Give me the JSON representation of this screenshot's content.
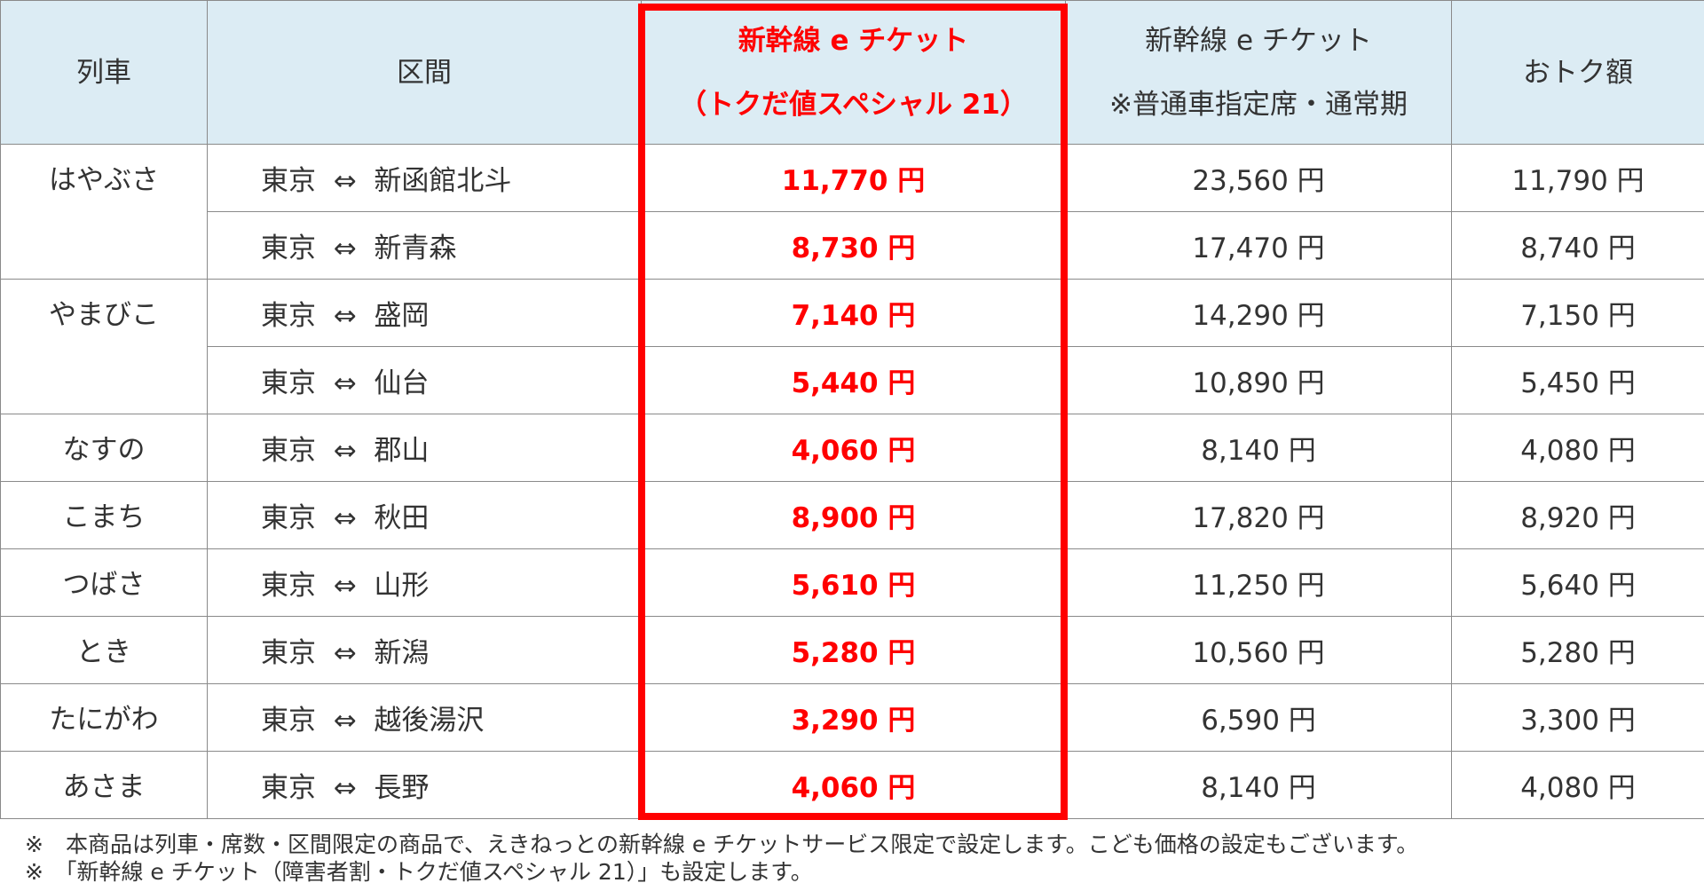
{
  "table": {
    "headers": [
      "列車",
      "区間",
      [
        "新幹線 e チケット",
        "（トクだ値スペシャル 21）"
      ],
      [
        "新幹線 e チケット",
        "※普通車指定席・通常期"
      ],
      "おトク額"
    ],
    "arrow": "⇔",
    "groups": [
      {
        "train": "はやぶさ",
        "routes": [
          {
            "from": "東京",
            "to": "新函館北斗",
            "price": "11,770 円",
            "normal": "23,560 円",
            "saving": "11,790 円"
          },
          {
            "from": "東京",
            "to": "新青森",
            "price": "8,730 円",
            "normal": "17,470 円",
            "saving": "8,740 円"
          }
        ]
      },
      {
        "train": "やまびこ",
        "routes": [
          {
            "from": "東京",
            "to": "盛岡",
            "price": "7,140 円",
            "normal": "14,290 円",
            "saving": "7,150 円"
          },
          {
            "from": "東京",
            "to": "仙台",
            "price": "5,440 円",
            "normal": "10,890 円",
            "saving": "5,450 円"
          }
        ]
      },
      {
        "train": "なすの",
        "routes": [
          {
            "from": "東京",
            "to": "郡山",
            "price": "4,060 円",
            "normal": "8,140 円",
            "saving": "4,080 円"
          }
        ]
      },
      {
        "train": "こまち",
        "routes": [
          {
            "from": "東京",
            "to": "秋田",
            "price": "8,900 円",
            "normal": "17,820 円",
            "saving": "8,920 円"
          }
        ]
      },
      {
        "train": "つばさ",
        "routes": [
          {
            "from": "東京",
            "to": "山形",
            "price": "5,610 円",
            "normal": "11,250 円",
            "saving": "5,640 円"
          }
        ]
      },
      {
        "train": "とき",
        "routes": [
          {
            "from": "東京",
            "to": "新潟",
            "price": "5,280 円",
            "normal": "10,560 円",
            "saving": "5,280 円"
          }
        ]
      },
      {
        "train": "たにがわ",
        "routes": [
          {
            "from": "東京",
            "to": "越後湯沢",
            "price": "3,290 円",
            "normal": "6,590 円",
            "saving": "3,300 円"
          }
        ]
      },
      {
        "train": "あさま",
        "routes": [
          {
            "from": "東京",
            "to": "長野",
            "price": "4,060 円",
            "normal": "8,140 円",
            "saving": "4,080 円"
          }
        ]
      }
    ]
  },
  "notes": [
    "※　本商品は列車・席数・区間限定の商品で、えきねっとの新幹線 e チケットサービス限定で設定します。こども価格の設定もございます。",
    "※　「新幹線 e チケット（障害者割・トクだ値スペシャル 21）」も設定します。"
  ]
}
